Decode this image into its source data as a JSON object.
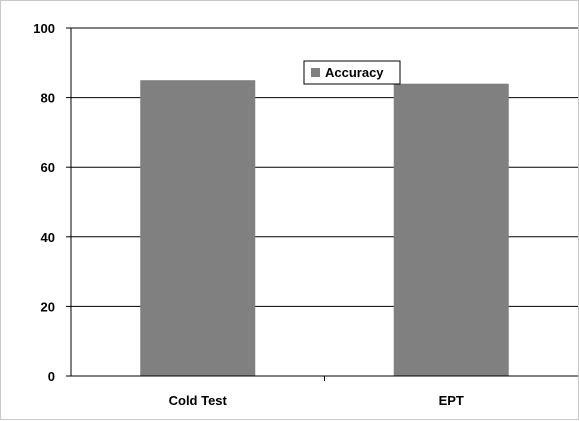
{
  "chart_data": {
    "type": "bar",
    "title": "",
    "xlabel": "",
    "ylabel": "",
    "categories": [
      "Cold Test",
      "EPT"
    ],
    "series": [
      {
        "name": "Accuracy",
        "values": [
          85,
          84
        ],
        "color": "#808080"
      }
    ],
    "ylim": [
      0,
      100
    ],
    "yticks": [
      "0",
      "20",
      "40",
      "60",
      "80",
      "100"
    ],
    "grid": true,
    "gridlines": "horizontal",
    "legend_position": "top-center"
  },
  "colors": {
    "bar": "#808080",
    "grid": "#000000",
    "axis": "#000000",
    "frame": "#c8c8c8",
    "background": "#ffffff"
  }
}
